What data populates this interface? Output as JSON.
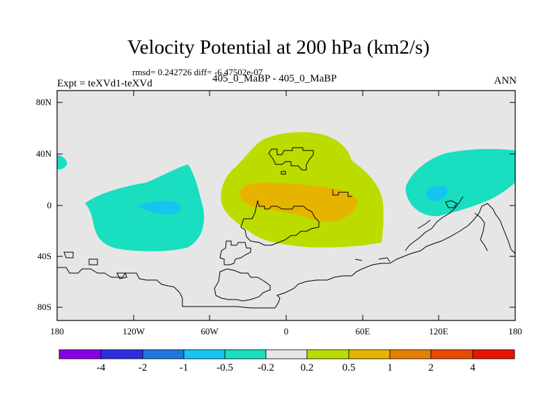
{
  "plot": {
    "title": "Velocity Potential at 200 hPa (km2/s)",
    "stats": "rmsd= 0.242726 diff= -6.47502e-07",
    "expt": "Expt = teXVd1-teXVd",
    "case": "405_0_MaBP - 405_0_MaBP",
    "season": "ANN",
    "y_axis": {
      "labels": [
        "80N",
        "40N",
        "0",
        "40S",
        "80S"
      ],
      "lat": [
        80,
        40,
        0,
        -40,
        -80
      ]
    },
    "x_axis": {
      "labels": [
        "180",
        "120W",
        "60W",
        "0",
        "60E",
        "120E",
        "180"
      ],
      "lon": [
        -180,
        -120,
        -60,
        0,
        60,
        120,
        180
      ]
    },
    "colorbar": {
      "labels": [
        "-4",
        "-2",
        "-1",
        "-0.5",
        "-0.2",
        "0.2",
        "0.5",
        "1",
        "2",
        "4"
      ],
      "colors": [
        "#8a00e6",
        "#2e2ee0",
        "#1f78e0",
        "#17c3f0",
        "#19dec0",
        "#e6e6e6",
        "#bcdc00",
        "#e6b400",
        "#e67e00",
        "#e64b00",
        "#e61400"
      ]
    },
    "fill_colors": {
      "background": "#e6e6e6",
      "neg_light": "#19dec0",
      "neg_mid": "#17c3f0",
      "pos_light": "#bcdc00",
      "pos_mid": "#e6b400"
    }
  }
}
